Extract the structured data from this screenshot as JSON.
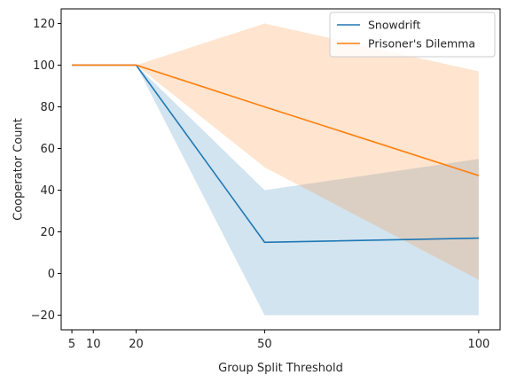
{
  "chart_data": {
    "type": "line",
    "title": "",
    "xlabel": "Group Split Threshold",
    "ylabel": "Cooperator Count",
    "xlim": [
      2.5,
      105
    ],
    "ylim": [
      -27,
      127
    ],
    "xticks": [
      5,
      10,
      20,
      50,
      100
    ],
    "yticks": [
      -20,
      0,
      20,
      40,
      60,
      80,
      100,
      120
    ],
    "grid": false,
    "legend_position": "top-right",
    "x": [
      5,
      20,
      50,
      100
    ],
    "series": [
      {
        "name": "Snowdrift",
        "color": "#1f77b4",
        "values": [
          100,
          100,
          15,
          17
        ],
        "band_upper": [
          100,
          100,
          40,
          55
        ],
        "band_lower": [
          100,
          100,
          -20,
          -20
        ]
      },
      {
        "name": "Prisoner's Dilemma",
        "color": "#ff7f0e",
        "values": [
          100,
          100,
          80,
          47
        ],
        "band_upper": [
          100,
          100,
          120,
          97
        ],
        "band_lower": [
          100,
          100,
          51,
          -3
        ]
      }
    ]
  }
}
